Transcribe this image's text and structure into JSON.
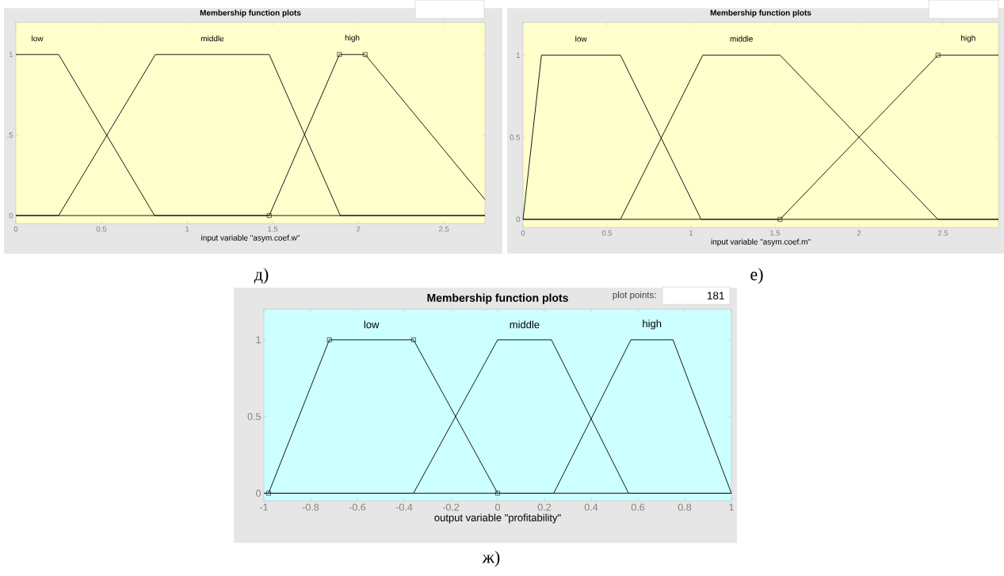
{
  "chart_data": [
    {
      "type": "line",
      "title": "Membership function plots",
      "xlabel": "input variable \"asym.coef.w\"",
      "xlim": [
        0,
        2.74
      ],
      "ylim": [
        -0.05,
        1.2
      ],
      "xticks": [
        0,
        0.5,
        1,
        1.5,
        2,
        2.5
      ],
      "yticks": [
        0,
        {
          "value": 0.5,
          "label": ".5"
        },
        1
      ],
      "line_style": "solid",
      "annotations": [
        "д)"
      ],
      "series": [
        {
          "name": "low",
          "color": "#000000",
          "x": [
            0,
            0.25,
            0.81,
            2.74
          ],
          "values": [
            1,
            1,
            0,
            0
          ]
        },
        {
          "name": "middle",
          "color": "#000000",
          "x": [
            0,
            0.25,
            0.815,
            1.48,
            1.895,
            2.74
          ],
          "values": [
            0,
            0,
            1,
            1,
            0,
            0
          ]
        },
        {
          "name": "high",
          "color": "#000000",
          "marker": "square",
          "x": [
            0,
            1.48,
            1.89,
            2.04,
            2.74
          ],
          "values": [
            0,
            0,
            1,
            1,
            0.1
          ]
        }
      ]
    },
    {
      "type": "line",
      "title": "Membership function plots",
      "xlabel": "input variable \"asym.coef.m\"",
      "xlim": [
        0,
        2.83
      ],
      "ylim": [
        -0.05,
        1.2
      ],
      "xticks": [
        0,
        0.5,
        1,
        1.5,
        2,
        2.5
      ],
      "yticks": [
        0,
        0.5,
        1
      ],
      "line_style": "solid",
      "annotations": [
        "е)"
      ],
      "series": [
        {
          "name": "low",
          "color": "#000000",
          "x": [
            0,
            0.11,
            0.58,
            1.06,
            2.83
          ],
          "values": [
            0,
            1,
            1,
            0,
            0
          ]
        },
        {
          "name": "middle",
          "color": "#000000",
          "x": [
            0,
            0.58,
            1.07,
            1.53,
            2.47,
            2.83
          ],
          "values": [
            0,
            0,
            1,
            1,
            0,
            0
          ]
        },
        {
          "name": "high",
          "color": "#000000",
          "marker": "square",
          "x": [
            0,
            1.53,
            2.47,
            2.83
          ],
          "values": [
            0,
            0,
            1,
            1
          ]
        }
      ]
    },
    {
      "type": "line",
      "title": "Membership function plots",
      "xlabel": "output variable \"profitability\"",
      "xlim": [
        -1,
        1
      ],
      "ylim": [
        -0.05,
        1.2
      ],
      "xticks": [
        -1,
        -0.8,
        -0.6,
        -0.4,
        -0.2,
        0,
        0.2,
        0.4,
        0.6,
        0.8,
        1
      ],
      "yticks": [
        0,
        0.5,
        1
      ],
      "line_style": "solid",
      "annotations": [
        "plot points:",
        "181",
        "ж)"
      ],
      "series": [
        {
          "name": "low",
          "color": "#000000",
          "marker": "square",
          "x": [
            -1,
            -0.98,
            -0.72,
            -0.36,
            0,
            1
          ],
          "values": [
            0,
            0,
            1,
            1,
            0,
            0
          ]
        },
        {
          "name": "middle",
          "color": "#000000",
          "x": [
            -1,
            -0.36,
            0,
            0.23,
            0.56,
            1
          ],
          "values": [
            0,
            0,
            1,
            1,
            0,
            0
          ]
        },
        {
          "name": "high",
          "color": "#000000",
          "x": [
            -1,
            0.24,
            0.57,
            0.75,
            1,
            1
          ],
          "values": [
            0,
            0,
            1,
            1,
            0,
            0
          ]
        }
      ]
    }
  ]
}
